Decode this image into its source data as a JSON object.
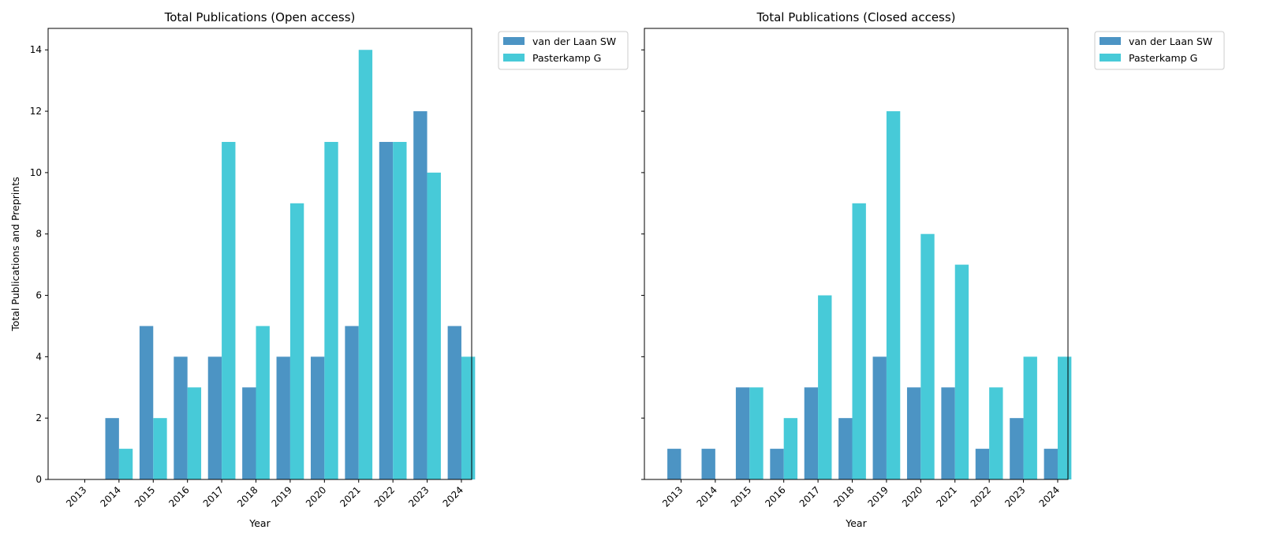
{
  "chart_data": [
    {
      "type": "bar",
      "title": "Total Publications (Open access)",
      "xlabel": "Year",
      "ylabel": "Total Publications and Preprints",
      "ylim": [
        0,
        14.7
      ],
      "yticks": [
        0,
        2,
        4,
        6,
        8,
        10,
        12,
        14
      ],
      "categories": [
        "2013",
        "2014",
        "2015",
        "2016",
        "2017",
        "2018",
        "2019",
        "2020",
        "2021",
        "2022",
        "2023",
        "2024"
      ],
      "series": [
        {
          "name": "van der Laan SW",
          "color": "#4c94c4",
          "values": [
            0,
            2,
            5,
            4,
            4,
            3,
            4,
            4,
            5,
            11,
            12,
            5
          ]
        },
        {
          "name": "Pasterkamp G",
          "color": "#47cad8",
          "values": [
            0,
            1,
            2,
            3,
            11,
            5,
            9,
            11,
            14,
            11,
            10,
            4
          ]
        }
      ],
      "legend": "outside-top-right",
      "grid": false
    },
    {
      "type": "bar",
      "title": "Total Publications (Closed access)",
      "xlabel": "Year",
      "ylabel": "",
      "ylim": [
        0,
        14.7
      ],
      "yticks": [
        0,
        2,
        4,
        6,
        8,
        10,
        12,
        14
      ],
      "categories": [
        "2013",
        "2014",
        "2015",
        "2016",
        "2017",
        "2018",
        "2019",
        "2020",
        "2021",
        "2022",
        "2023",
        "2024"
      ],
      "series": [
        {
          "name": "van der Laan SW",
          "color": "#4c94c4",
          "values": [
            1,
            1,
            3,
            1,
            3,
            2,
            4,
            3,
            3,
            1,
            2,
            1
          ]
        },
        {
          "name": "Pasterkamp G",
          "color": "#47cad8",
          "values": [
            0,
            0,
            3,
            2,
            6,
            9,
            12,
            8,
            7,
            3,
            4,
            4
          ]
        }
      ],
      "legend": "outside-top-right",
      "grid": false
    }
  ]
}
